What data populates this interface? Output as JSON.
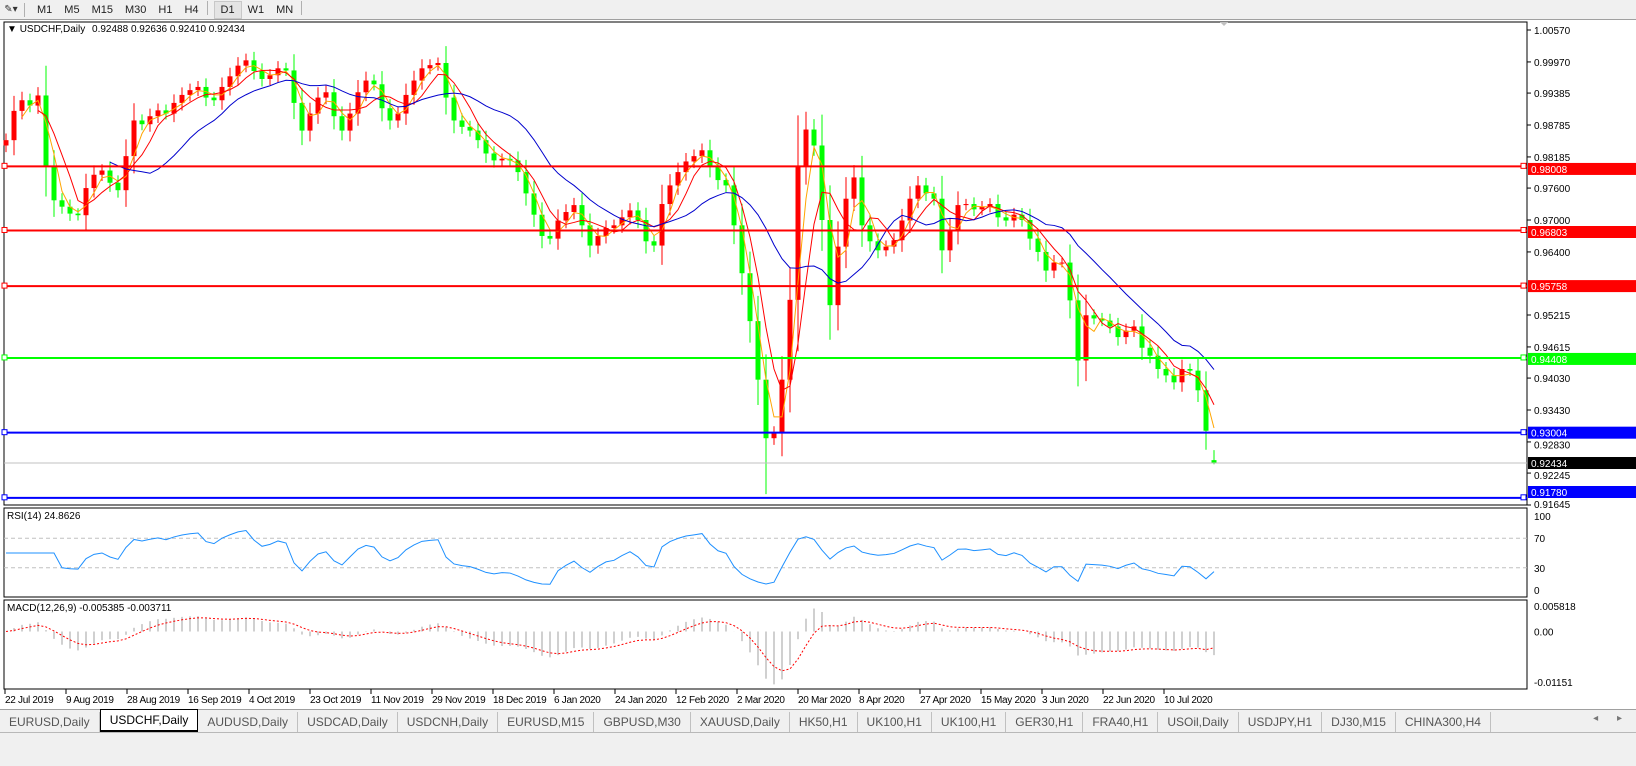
{
  "toolbar": {
    "icon": "line-studies-icon",
    "timeframes": [
      "M1",
      "M5",
      "M15",
      "M30",
      "H1",
      "H4",
      "D1",
      "W1",
      "MN"
    ],
    "active_timeframe": "D1"
  },
  "chart": {
    "symbol_title": "USDCHF,Daily",
    "ohlc_text": "0.92488 0.92636 0.92410 0.92434",
    "rsi_header": "RSI(14) 24.8626",
    "macd_header": "MACD(12,26,9) -0.005385 -0.003711",
    "colors": {
      "bull": "#ff0000",
      "bear": "#00ff00",
      "ma_fast": "#ffa500",
      "ma_mid": "#ff0000",
      "ma_slow": "#0000cd",
      "rsi": "#1e90ff",
      "macd_hist": "#c0c0c0",
      "macd_signal": "#ff0000"
    }
  },
  "chart_data": {
    "type": "candlestick",
    "symbol": "USDCHF",
    "timeframe": "Daily",
    "price_ticks": [
      "1.00570",
      "0.99970",
      "0.99385",
      "0.98785",
      "0.98185",
      "0.97600",
      "0.97000",
      "0.96400",
      "0.95215",
      "0.94615",
      "0.94030",
      "0.93430",
      "0.92830",
      "0.92245",
      "0.91645"
    ],
    "ylim": [
      0.91645,
      1.0057
    ],
    "date_ticks": [
      "22 Jul 2019",
      "9 Aug 2019",
      "28 Aug 2019",
      "16 Sep 2019",
      "4 Oct 2019",
      "23 Oct 2019",
      "11 Nov 2019",
      "29 Nov 2019",
      "18 Dec 2019",
      "6 Jan 2020",
      "24 Jan 2020",
      "12 Feb 2020",
      "2 Mar 2020",
      "20 Mar 2020",
      "8 Apr 2020",
      "27 Apr 2020",
      "15 May 2020",
      "3 Jun 2020",
      "22 Jun 2020",
      "10 Jul 2020"
    ],
    "close": [
      0.985,
      0.9905,
      0.9925,
      0.9915,
      0.9934,
      0.98,
      0.9737,
      0.9725,
      0.9712,
      0.9709,
      0.976,
      0.9785,
      0.9793,
      0.977,
      0.9756,
      0.982,
      0.9887,
      0.988,
      0.9895,
      0.9906,
      0.99,
      0.992,
      0.9935,
      0.9944,
      0.995,
      0.993,
      0.9925,
      0.995,
      0.997,
      0.999,
      1.0,
      0.998,
      0.9965,
      0.9972,
      0.9985,
      0.9981,
      0.992,
      0.9868,
      0.99,
      0.993,
      0.994,
      0.9895,
      0.9868,
      0.99,
      0.994,
      0.9962,
      0.9955,
      0.991,
      0.9887,
      0.99,
      0.9935,
      0.9962,
      0.9985,
      0.9991,
      0.9995,
      0.993,
      0.9887,
      0.9875,
      0.9868,
      0.985,
      0.9825,
      0.9812,
      0.9815,
      0.9812,
      0.979,
      0.975,
      0.971,
      0.967,
      0.9665,
      0.9699,
      0.9715,
      0.9728,
      0.969,
      0.9652,
      0.967,
      0.9685,
      0.969,
      0.9705,
      0.9718,
      0.97,
      0.966,
      0.9652,
      0.973,
      0.9765,
      0.979,
      0.981,
      0.982,
      0.9831,
      0.98,
      0.9775,
      0.9765,
      0.969,
      0.96,
      0.951,
      0.94,
      0.929,
      0.93,
      0.94,
      0.955,
      0.98,
      0.987,
      0.984,
      0.97,
      0.954,
      0.965,
      0.974,
      0.978,
      0.969,
      0.966,
      0.9643,
      0.965,
      0.9662,
      0.9699,
      0.974,
      0.9765,
      0.975,
      0.974,
      0.9643,
      0.968,
      0.9728,
      0.973,
      0.972,
      0.9725,
      0.973,
      0.9705,
      0.9699,
      0.971,
      0.97,
      0.9665,
      0.964,
      0.9605,
      0.962,
      0.962,
      0.9549,
      0.9436,
      0.9521,
      0.9515,
      0.9511,
      0.95,
      0.948,
      0.9492,
      0.95,
      0.946,
      0.9445,
      0.942,
      0.9408,
      0.9395,
      0.942,
      0.9417,
      0.938,
      0.9304,
      0.92434
    ],
    "last_bar": {
      "open": 0.92488,
      "high": 0.92636,
      "low": 0.9241,
      "close": 0.92434
    },
    "horizontal_lines": [
      {
        "price": 0.98008,
        "label": "0.98008",
        "color": "#ff0000"
      },
      {
        "price": 0.96803,
        "label": "0.96803",
        "color": "#ff0000"
      },
      {
        "price": 0.95758,
        "label": "0.95758",
        "color": "#ff0000"
      },
      {
        "price": 0.94408,
        "label": "0.94408",
        "color": "#00ff00"
      },
      {
        "price": 0.93004,
        "label": "0.93004",
        "color": "#0000ff"
      },
      {
        "price": 0.9178,
        "label": "0.91780",
        "color": "#0000ff"
      }
    ],
    "current_price": {
      "price": 0.92434,
      "label": "0.92434"
    },
    "rsi": {
      "period": 14,
      "value": 24.8626,
      "levels": [
        70,
        30
      ],
      "ticks": [
        "100",
        "70",
        "30",
        "0"
      ]
    },
    "macd": {
      "fast": 12,
      "slow": 26,
      "signal": 9,
      "main": -0.005385,
      "signal_value": -0.003711,
      "ticks": [
        "0.005818",
        "0.00",
        "-0.01151"
      ],
      "ylim": [
        -0.01151,
        0.005818
      ]
    }
  },
  "tabs": {
    "items": [
      "EURUSD,Daily",
      "USDCHF,Daily",
      "AUDUSD,Daily",
      "USDCAD,Daily",
      "USDCNH,Daily",
      "EURUSD,M15",
      "GBPUSD,M30",
      "XAUUSD,Daily",
      "HK50,H1",
      "UK100,H1",
      "UK100,H1",
      "GER30,H1",
      "FRA40,H1",
      "USOil,Daily",
      "USDJPY,H1",
      "DJ30,M15",
      "CHINA300,H4"
    ],
    "active": "USDCHF,Daily",
    "scroll": "◂ ▸"
  }
}
